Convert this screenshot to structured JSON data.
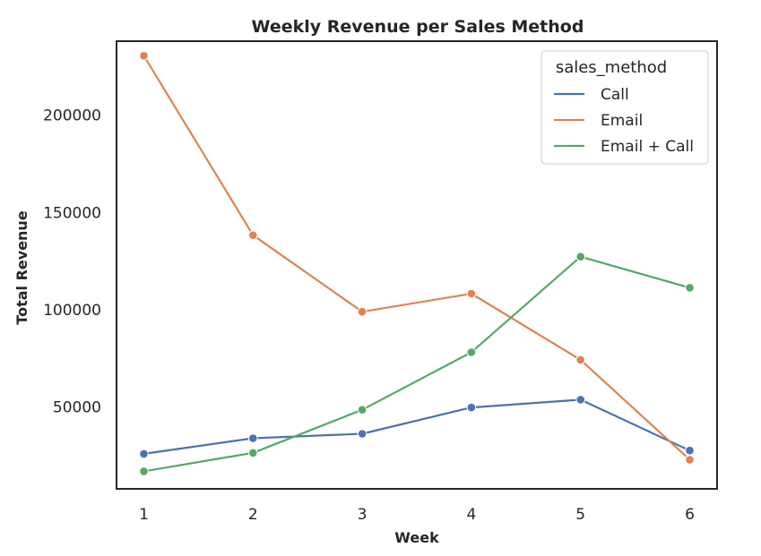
{
  "chart_data": {
    "type": "line",
    "title": "Weekly Revenue per Sales Method",
    "xlabel": "Week",
    "ylabel": "Total Revenue",
    "x": [
      1,
      2,
      3,
      4,
      5,
      6
    ],
    "xlim": [
      0.75,
      6.25
    ],
    "ylim": [
      8000,
      238000
    ],
    "yticks": [
      50000,
      100000,
      150000,
      200000
    ],
    "grid": false,
    "legend": {
      "title": "sales_method",
      "position": "top-right"
    },
    "series": [
      {
        "name": "Call",
        "color": "#4c72b0",
        "values": [
          26000,
          34000,
          36300,
          49800,
          53800,
          27700
        ]
      },
      {
        "name": "Email",
        "color": "#dd8452",
        "values": [
          230500,
          138300,
          99000,
          108300,
          74300,
          23000
        ]
      },
      {
        "name": "Email + Call",
        "color": "#55a868",
        "values": [
          17000,
          26500,
          48600,
          78200,
          127300,
          111300
        ]
      }
    ]
  }
}
